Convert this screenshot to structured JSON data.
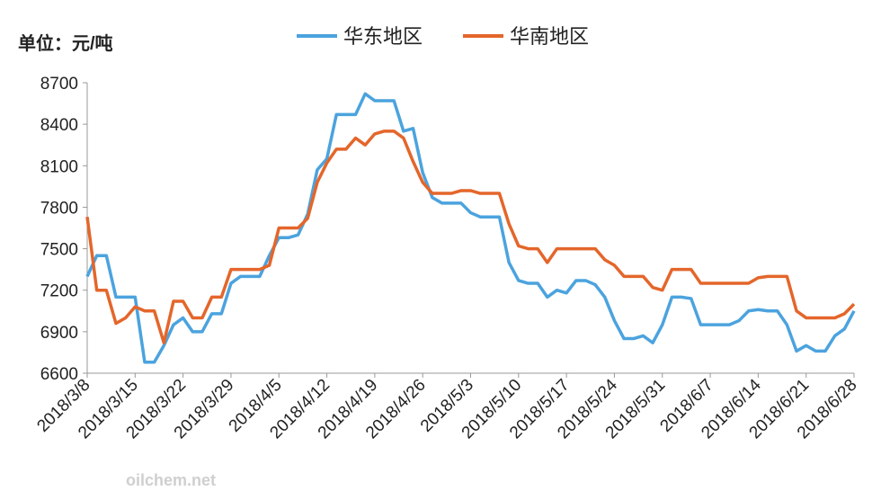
{
  "chart_data": {
    "type": "line",
    "unit_label": "单位：元/吨",
    "watermark": "oilchem.net",
    "categories": [
      "2018/3/8",
      null,
      null,
      null,
      null,
      "2018/3/15",
      null,
      null,
      null,
      null,
      "2018/3/22",
      null,
      null,
      null,
      null,
      "2018/3/29",
      null,
      null,
      null,
      null,
      "2018/4/5",
      null,
      null,
      null,
      null,
      "2018/4/12",
      null,
      null,
      null,
      null,
      "2018/4/19",
      null,
      null,
      null,
      null,
      "2018/4/26",
      null,
      null,
      null,
      null,
      "2018/5/3",
      null,
      null,
      null,
      null,
      "2018/5/10",
      null,
      null,
      null,
      null,
      "2018/5/17",
      null,
      null,
      null,
      null,
      "2018/5/24",
      null,
      null,
      null,
      null,
      "2018/5/31",
      null,
      null,
      null,
      null,
      "2018/6/7",
      null,
      null,
      null,
      null,
      "2018/6/14",
      null,
      null,
      null,
      null,
      "2018/6/21",
      null,
      null,
      null,
      null,
      "2018/6/28"
    ],
    "series": [
      {
        "name": "华东地区",
        "color": "#4ba3de",
        "values": [
          7300,
          7450,
          7450,
          7150,
          7150,
          7150,
          6680,
          6680,
          6800,
          6950,
          7000,
          6900,
          6900,
          7030,
          7030,
          7250,
          7300,
          7300,
          7300,
          7450,
          7580,
          7580,
          7600,
          7750,
          8070,
          8150,
          8470,
          8470,
          8470,
          8620,
          8570,
          8570,
          8570,
          8350,
          8370,
          8050,
          7870,
          7830,
          7830,
          7830,
          7760,
          7730,
          7730,
          7730,
          7400,
          7270,
          7250,
          7250,
          7150,
          7200,
          7180,
          7270,
          7270,
          7240,
          7150,
          6980,
          6850,
          6850,
          6870,
          6820,
          6950,
          7150,
          7150,
          7140,
          6950,
          6950,
          6950,
          6950,
          6980,
          7050,
          7060,
          7050,
          7050,
          6950,
          6760,
          6800,
          6760,
          6760,
          6870,
          6920,
          7050
        ]
      },
      {
        "name": "华南地区",
        "color": "#e4662b",
        "values": [
          7730,
          7200,
          7200,
          6960,
          7000,
          7080,
          7050,
          7050,
          6820,
          7120,
          7120,
          7000,
          7000,
          7150,
          7150,
          7350,
          7350,
          7350,
          7350,
          7380,
          7650,
          7650,
          7650,
          7720,
          7980,
          8120,
          8220,
          8220,
          8300,
          8250,
          8330,
          8350,
          8350,
          8300,
          8130,
          7980,
          7900,
          7900,
          7900,
          7920,
          7920,
          7900,
          7900,
          7900,
          7680,
          7520,
          7500,
          7500,
          7400,
          7500,
          7500,
          7500,
          7500,
          7500,
          7420,
          7380,
          7300,
          7300,
          7300,
          7220,
          7200,
          7350,
          7350,
          7350,
          7250,
          7250,
          7250,
          7250,
          7250,
          7250,
          7290,
          7300,
          7300,
          7300,
          7050,
          7000,
          7000,
          7000,
          7000,
          7030,
          7100
        ]
      }
    ],
    "ylim": [
      6600,
      8700
    ],
    "yticks": [
      6600,
      6900,
      7200,
      7500,
      7800,
      8100,
      8400,
      8700
    ],
    "grid": false
  }
}
